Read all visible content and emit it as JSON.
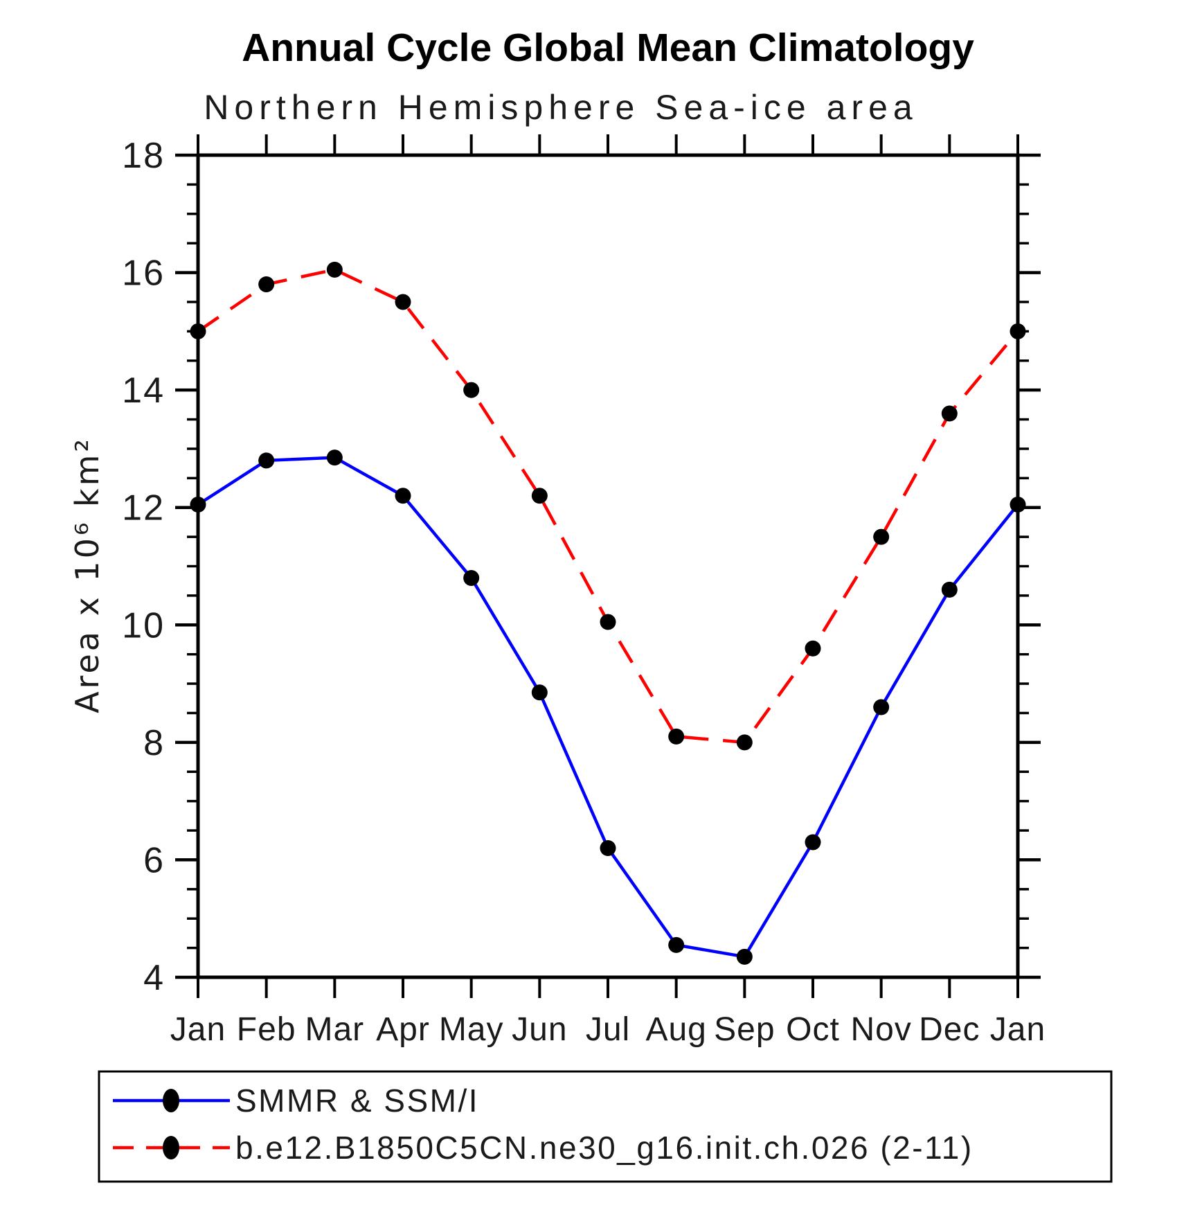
{
  "page": {
    "background": "#ffffff"
  },
  "chart_data": {
    "type": "line",
    "title": "Annual Cycle Global Mean Climatology",
    "subtitle": "Northern Hemisphere Sea-ice area",
    "ylabel": "Area x 10⁶ km²",
    "xlabel": "",
    "categories": [
      "Jan",
      "Feb",
      "Mar",
      "Apr",
      "May",
      "Jun",
      "Jul",
      "Aug",
      "Sep",
      "Oct",
      "Nov",
      "Dec",
      "Jan"
    ],
    "ylim": [
      4,
      18
    ],
    "ytick_major_step": 2,
    "ytick_minor_step": 0.5,
    "ytick_major_labels": [
      "4",
      "6",
      "8",
      "10",
      "12",
      "14",
      "16",
      "18"
    ],
    "grid": "off",
    "legend_position": "bottom",
    "marker": {
      "shape": "circle",
      "color": "#000000"
    },
    "series": [
      {
        "name": "SMMR & SSM/I",
        "color": "#0000ff",
        "line_style": "solid",
        "values": [
          12.05,
          12.8,
          12.85,
          12.2,
          10.8,
          8.85,
          6.2,
          4.55,
          4.35,
          6.3,
          8.6,
          10.6,
          12.05
        ]
      },
      {
        "name": "b.e12.B1850C5CN.ne30_g16.init.ch.026 (2-11)",
        "color": "#ff0000",
        "line_style": "dashed",
        "values": [
          15.0,
          15.8,
          16.05,
          15.5,
          14.0,
          12.2,
          10.05,
          8.1,
          8.0,
          9.6,
          11.5,
          13.6,
          15.0
        ]
      }
    ]
  }
}
